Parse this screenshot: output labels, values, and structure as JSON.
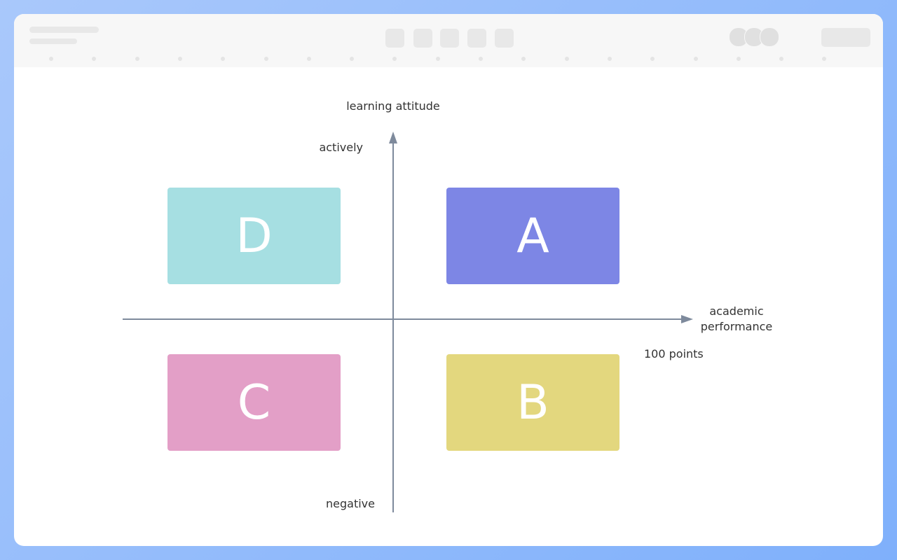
{
  "y_axis": {
    "label": "learning attitude",
    "top": "actively",
    "bottom": "negative"
  },
  "x_axis": {
    "label": "academic performance",
    "end": "100 points"
  },
  "quadrants": [
    {
      "label": "D",
      "color": "#a6dfe2"
    },
    {
      "label": "A",
      "color": "#7d86e5"
    },
    {
      "label": "C",
      "color": "#e39fc7"
    },
    {
      "label": "B",
      "color": "#e3d77e"
    }
  ]
}
